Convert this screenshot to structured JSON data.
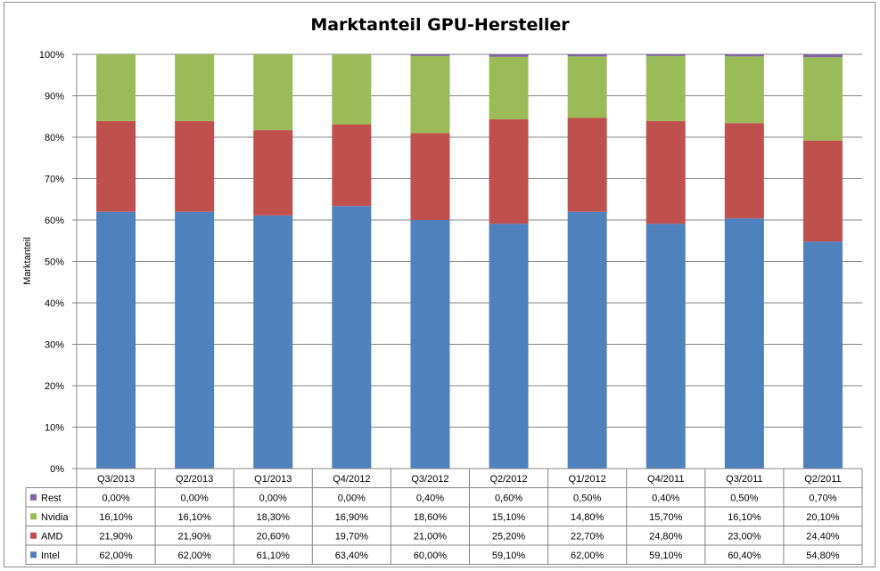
{
  "chart_data": {
    "type": "bar",
    "stacked": true,
    "title": "Marktanteil GPU-Hersteller",
    "xlabel": "",
    "ylabel": "Marktanteil",
    "ylim": [
      0,
      100
    ],
    "ytick_labels": [
      "0%",
      "10%",
      "20%",
      "30%",
      "40%",
      "50%",
      "60%",
      "70%",
      "80%",
      "90%",
      "100%"
    ],
    "grid": true,
    "legend": "in data table below the chart",
    "categories": [
      "Q3/2013",
      "Q2/2013",
      "Q1/2013",
      "Q4/2012",
      "Q3/2012",
      "Q2/2012",
      "Q1/2012",
      "Q4/2011",
      "Q3/2011",
      "Q2/2011"
    ],
    "series": [
      {
        "name": "Rest",
        "color": "#8064a2",
        "values": [
          0.0,
          0.0,
          0.0,
          0.0,
          0.4,
          0.6,
          0.5,
          0.4,
          0.5,
          0.7
        ],
        "labels": [
          "0,00%",
          "0,00%",
          "0,00%",
          "0,00%",
          "0,40%",
          "0,60%",
          "0,50%",
          "0,40%",
          "0,50%",
          "0,70%"
        ]
      },
      {
        "name": "Nvidia",
        "color": "#9bbb59",
        "values": [
          16.1,
          16.1,
          18.3,
          16.9,
          18.6,
          15.1,
          14.8,
          15.7,
          16.1,
          20.1
        ],
        "labels": [
          "16,10%",
          "16,10%",
          "18,30%",
          "16,90%",
          "18,60%",
          "15,10%",
          "14,80%",
          "15,70%",
          "16,10%",
          "20,10%"
        ]
      },
      {
        "name": "AMD",
        "color": "#c0504d",
        "values": [
          21.9,
          21.9,
          20.6,
          19.7,
          21.0,
          25.2,
          22.7,
          24.8,
          23.0,
          24.4
        ],
        "labels": [
          "21,90%",
          "21,90%",
          "20,60%",
          "19,70%",
          "21,00%",
          "25,20%",
          "22,70%",
          "24,80%",
          "23,00%",
          "24,40%"
        ]
      },
      {
        "name": "Intel",
        "color": "#4f81bd",
        "values": [
          62.0,
          62.0,
          61.1,
          63.4,
          60.0,
          59.1,
          62.0,
          59.1,
          60.4,
          54.8
        ],
        "labels": [
          "62,00%",
          "62,00%",
          "61,10%",
          "63,40%",
          "60,00%",
          "59,10%",
          "62,00%",
          "59,10%",
          "60,40%",
          "54,80%"
        ]
      }
    ],
    "stack_order_bottom_to_top": [
      "Intel",
      "AMD",
      "Nvidia",
      "Rest"
    ]
  }
}
